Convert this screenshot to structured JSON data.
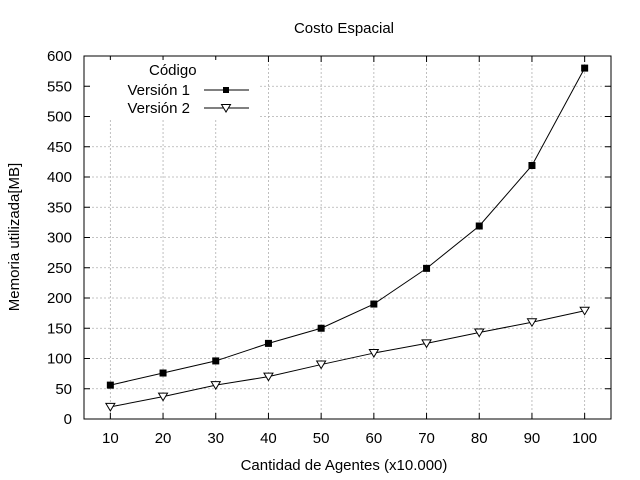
{
  "chart_data": {
    "type": "line",
    "title": "Costo Espacial",
    "xlabel": "Cantidad de Agentes (x10.000)",
    "ylabel": "Memoria utilizada[MB]",
    "x": [
      10,
      20,
      30,
      40,
      50,
      60,
      70,
      80,
      90,
      100
    ],
    "xlim": [
      5,
      105
    ],
    "ylim": [
      0,
      600
    ],
    "xticks": [
      10,
      20,
      30,
      40,
      50,
      60,
      70,
      80,
      90,
      100
    ],
    "yticks": [
      0,
      50,
      100,
      150,
      200,
      250,
      300,
      350,
      400,
      450,
      500,
      550,
      600
    ],
    "grid": true,
    "legend_title": "Código",
    "legend_position": "top-left",
    "series": [
      {
        "name": "Versión 1",
        "marker": "filled-square",
        "values": [
          56,
          76,
          96,
          125,
          150,
          190,
          249,
          319,
          419,
          580
        ]
      },
      {
        "name": "Versión 2",
        "marker": "open-down-triangle",
        "values": [
          20,
          37,
          56,
          70,
          90,
          109,
          125,
          143,
          160,
          179
        ]
      }
    ]
  }
}
